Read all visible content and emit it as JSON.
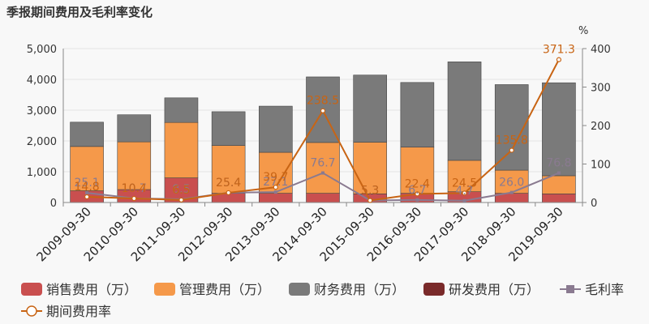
{
  "chart_data": {
    "type": "bar",
    "title": "季报期间费用及毛利率变化",
    "right_axis_unit": "%",
    "categories": [
      "2009-09-30",
      "2010-09-30",
      "2011-09-30",
      "2012-09-30",
      "2013-09-30",
      "2014-09-30",
      "2015-09-30",
      "2016-09-30",
      "2017-09-30",
      "2018-09-30",
      "2019-09-30"
    ],
    "left_axis": {
      "ylim": [
        0,
        5000
      ],
      "ticks": [
        "0",
        "1,000",
        "2,000",
        "3,000",
        "4,000",
        "5,000"
      ]
    },
    "right_axis": {
      "ylim": [
        0,
        400
      ],
      "ticks": [
        "0",
        "100",
        "200",
        "300",
        "400"
      ]
    },
    "bar_series": [
      {
        "name": "销售费用（万）",
        "color": "#c94f4f",
        "values": [
          380,
          420,
          800,
          300,
          300,
          300,
          280,
          300,
          350,
          300,
          280
        ]
      },
      {
        "name": "管理费用（万）",
        "color": "#f5994a",
        "values": [
          1440,
          1550,
          1800,
          1550,
          1330,
          1650,
          1680,
          1500,
          1020,
          750,
          590
        ]
      },
      {
        "name": "财务费用（万）",
        "color": "#7a7a7a",
        "values": [
          790,
          880,
          800,
          1100,
          1500,
          2130,
          2180,
          2100,
          3200,
          2780,
          3020
        ]
      },
      {
        "name": "研发费用（万）",
        "color": "#7a2a2a",
        "values": [
          0,
          0,
          0,
          0,
          0,
          0,
          0,
          0,
          0,
          0,
          0
        ]
      }
    ],
    "line_series": [
      {
        "name": "毛利率",
        "color": "#8a7a90",
        "values": [
          25.1,
          10.7,
          8.5,
          25.4,
          27.1,
          76.7,
          5.3,
          6.7,
          4.7,
          26.0,
          76.8
        ],
        "labels": [
          "25.1",
          "10.7",
          "8.5",
          "25.4",
          "27.1",
          "76.7",
          "5.3",
          "6.7",
          "4.7",
          "26.0",
          "76.8"
        ]
      },
      {
        "name": "期间费用率",
        "color": "#c86414",
        "values": [
          14.8,
          10.4,
          6.5,
          25.4,
          39.7,
          238.5,
          5.3,
          22.4,
          24.5,
          135.8,
          371.3
        ],
        "labels": [
          "14.8",
          "10.4",
          "6.5",
          "25.4",
          "39.7",
          "238.5",
          "5.3",
          "22.4",
          "24.5",
          "135.8",
          "371.3"
        ]
      }
    ],
    "grid": true,
    "legend_position": "bottom"
  },
  "colors": {
    "background": "#f8f8f8",
    "grid": "#e3e3e3",
    "axis": "#888888"
  }
}
